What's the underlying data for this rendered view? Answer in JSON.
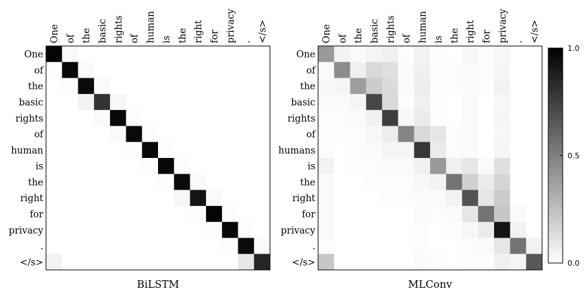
{
  "chart_data": [
    {
      "type": "heatmap",
      "title": "BiLSTM",
      "x_labels": [
        "One",
        "of",
        "the",
        "basic",
        "rights",
        "of",
        "human",
        "is",
        "the",
        "right",
        "for",
        "privacy",
        ".",
        "</s>"
      ],
      "y_labels": [
        "One",
        "of",
        "the",
        "basic",
        "rights",
        "of",
        "human",
        "is",
        "the",
        "right",
        "for",
        "privacy",
        ".",
        "</s>"
      ],
      "values": [
        [
          0.98,
          0.02,
          0.0,
          0.0,
          0.0,
          0.0,
          0.0,
          0.0,
          0.0,
          0.0,
          0.0,
          0.0,
          0.0,
          0.0
        ],
        [
          0.01,
          0.97,
          0.02,
          0.0,
          0.0,
          0.0,
          0.0,
          0.0,
          0.0,
          0.0,
          0.0,
          0.0,
          0.0,
          0.0
        ],
        [
          0.0,
          0.01,
          0.96,
          0.02,
          0.0,
          0.0,
          0.0,
          0.0,
          0.0,
          0.0,
          0.0,
          0.0,
          0.0,
          0.0
        ],
        [
          0.0,
          0.0,
          0.05,
          0.8,
          0.03,
          0.0,
          0.0,
          0.0,
          0.0,
          0.0,
          0.0,
          0.0,
          0.0,
          0.0
        ],
        [
          0.0,
          0.0,
          0.0,
          0.02,
          0.97,
          0.01,
          0.0,
          0.0,
          0.0,
          0.0,
          0.0,
          0.0,
          0.0,
          0.0
        ],
        [
          0.0,
          0.0,
          0.0,
          0.0,
          0.02,
          0.96,
          0.01,
          0.0,
          0.0,
          0.0,
          0.0,
          0.0,
          0.0,
          0.0
        ],
        [
          0.0,
          0.0,
          0.0,
          0.0,
          0.0,
          0.01,
          0.97,
          0.01,
          0.0,
          0.0,
          0.0,
          0.0,
          0.0,
          0.0
        ],
        [
          0.0,
          0.0,
          0.0,
          0.0,
          0.0,
          0.0,
          0.01,
          0.97,
          0.01,
          0.0,
          0.0,
          0.0,
          0.0,
          0.0
        ],
        [
          0.0,
          0.0,
          0.0,
          0.0,
          0.0,
          0.0,
          0.0,
          0.01,
          0.96,
          0.02,
          0.0,
          0.0,
          0.0,
          0.0
        ],
        [
          0.0,
          0.0,
          0.0,
          0.0,
          0.0,
          0.0,
          0.0,
          0.0,
          0.03,
          0.92,
          0.02,
          0.0,
          0.0,
          0.0
        ],
        [
          0.0,
          0.0,
          0.0,
          0.0,
          0.0,
          0.0,
          0.0,
          0.0,
          0.0,
          0.01,
          0.98,
          0.01,
          0.0,
          0.0
        ],
        [
          0.0,
          0.0,
          0.0,
          0.0,
          0.0,
          0.0,
          0.0,
          0.0,
          0.0,
          0.0,
          0.01,
          0.97,
          0.01,
          0.0
        ],
        [
          0.0,
          0.0,
          0.0,
          0.0,
          0.0,
          0.0,
          0.0,
          0.0,
          0.0,
          0.0,
          0.0,
          0.01,
          0.96,
          0.02
        ],
        [
          0.05,
          0.0,
          0.0,
          0.0,
          0.0,
          0.0,
          0.0,
          0.0,
          0.0,
          0.0,
          0.0,
          0.0,
          0.1,
          0.85
        ]
      ]
    },
    {
      "type": "heatmap",
      "title": "MLConv",
      "x_labels": [
        "One",
        "of",
        "the",
        "basic",
        "rights",
        "of",
        "human",
        "is",
        "the",
        "right",
        "for",
        "privacy",
        ".",
        "</s>"
      ],
      "y_labels": [
        "One",
        "of",
        "the",
        "basic",
        "rights",
        "of",
        "humans",
        "is",
        "the",
        "right",
        "for",
        "privacy",
        ".",
        "</s>"
      ],
      "values": [
        [
          0.4,
          0.05,
          0.02,
          0.04,
          0.06,
          0.01,
          0.05,
          0.01,
          0.0,
          0.03,
          0.01,
          0.03,
          0.0,
          0.0
        ],
        [
          0.02,
          0.45,
          0.06,
          0.15,
          0.12,
          0.02,
          0.06,
          0.01,
          0.01,
          0.02,
          0.01,
          0.04,
          0.0,
          0.0
        ],
        [
          0.03,
          0.04,
          0.38,
          0.2,
          0.14,
          0.02,
          0.07,
          0.01,
          0.01,
          0.02,
          0.01,
          0.05,
          0.0,
          0.0
        ],
        [
          0.02,
          0.02,
          0.04,
          0.72,
          0.15,
          0.01,
          0.06,
          0.01,
          0.0,
          0.02,
          0.0,
          0.03,
          0.0,
          0.0
        ],
        [
          0.01,
          0.01,
          0.02,
          0.06,
          0.76,
          0.03,
          0.08,
          0.01,
          0.0,
          0.02,
          0.0,
          0.04,
          0.0,
          0.0
        ],
        [
          0.01,
          0.01,
          0.01,
          0.03,
          0.07,
          0.48,
          0.15,
          0.1,
          0.01,
          0.02,
          0.0,
          0.03,
          0.0,
          0.0
        ],
        [
          0.01,
          0.0,
          0.01,
          0.02,
          0.04,
          0.04,
          0.78,
          0.08,
          0.01,
          0.02,
          0.0,
          0.04,
          0.0,
          0.0
        ],
        [
          0.05,
          0.0,
          0.01,
          0.01,
          0.02,
          0.02,
          0.06,
          0.4,
          0.06,
          0.1,
          0.02,
          0.12,
          0.0,
          0.0
        ],
        [
          0.02,
          0.0,
          0.0,
          0.01,
          0.01,
          0.01,
          0.03,
          0.05,
          0.55,
          0.18,
          0.08,
          0.16,
          0.0,
          0.0
        ],
        [
          0.02,
          0.0,
          0.0,
          0.0,
          0.01,
          0.01,
          0.02,
          0.02,
          0.05,
          0.68,
          0.1,
          0.2,
          0.0,
          0.0
        ],
        [
          0.02,
          0.0,
          0.0,
          0.0,
          0.0,
          0.0,
          0.02,
          0.01,
          0.02,
          0.1,
          0.55,
          0.22,
          0.02,
          0.0
        ],
        [
          0.02,
          0.0,
          0.0,
          0.0,
          0.0,
          0.0,
          0.01,
          0.0,
          0.01,
          0.03,
          0.08,
          0.92,
          0.05,
          0.0
        ],
        [
          0.01,
          0.0,
          0.0,
          0.0,
          0.0,
          0.0,
          0.01,
          0.0,
          0.0,
          0.01,
          0.02,
          0.1,
          0.55,
          0.05
        ],
        [
          0.22,
          0.0,
          0.0,
          0.0,
          0.0,
          0.0,
          0.02,
          0.01,
          0.0,
          0.01,
          0.01,
          0.06,
          0.04,
          0.65
        ]
      ]
    }
  ],
  "colorbar": {
    "min": 0.0,
    "max": 1.0,
    "tick_labels": [
      "1.0",
      "0.5",
      "0.0"
    ],
    "tick_values": [
      1.0,
      0.5,
      0.0
    ]
  }
}
